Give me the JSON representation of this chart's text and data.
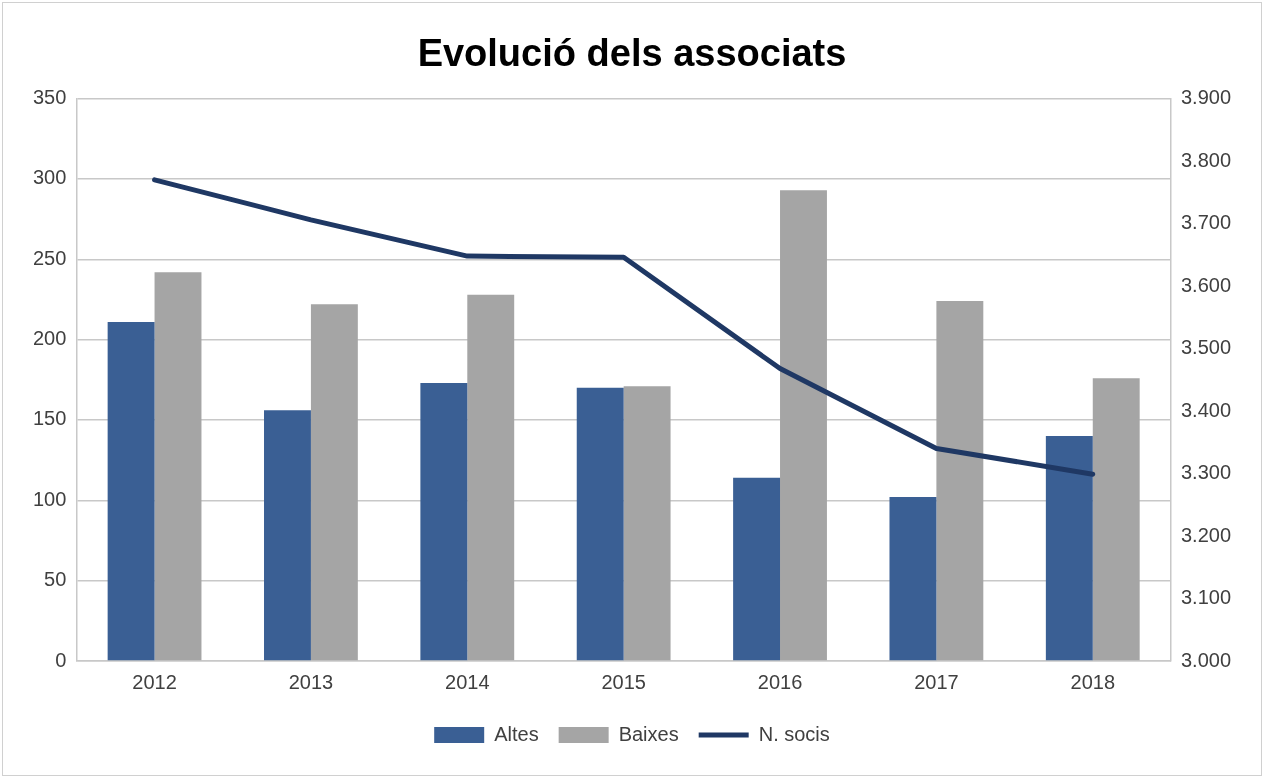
{
  "chart_data": {
    "type": "bar",
    "title": "Evolució dels associats",
    "categories": [
      "2012",
      "2013",
      "2014",
      "2015",
      "2016",
      "2017",
      "2018"
    ],
    "series": [
      {
        "name": "Altes",
        "color": "#3a5f94",
        "values": [
          211,
          156,
          173,
          170,
          114,
          102,
          140
        ]
      },
      {
        "name": "Baixes",
        "color": "#a5a5a5",
        "values": [
          242,
          222,
          228,
          171,
          293,
          224,
          176
        ]
      },
      {
        "name": "N. socis",
        "type": "line",
        "axis": "y2",
        "color": "#1f3864",
        "values": [
          3770,
          3706,
          3648,
          3646,
          3468,
          3340,
          3299
        ]
      }
    ],
    "ylim": [
      0,
      350
    ],
    "yticks": [
      0,
      50,
      100,
      150,
      200,
      250,
      300,
      350
    ],
    "y2lim": [
      3000,
      3900
    ],
    "y2ticks": [
      {
        "value": 3000,
        "label": "3.000"
      },
      {
        "value": 3100,
        "label": "3.100"
      },
      {
        "value": 3200,
        "label": "3.200"
      },
      {
        "value": 3300,
        "label": "3.300"
      },
      {
        "value": 3400,
        "label": "3.400"
      },
      {
        "value": 3500,
        "label": "3.500"
      },
      {
        "value": 3600,
        "label": "3.600"
      },
      {
        "value": 3700,
        "label": "3.700"
      },
      {
        "value": 3800,
        "label": "3.800"
      },
      {
        "value": 3900,
        "label": "3.900"
      }
    ],
    "grid": "y",
    "legend": "bottom",
    "marker": "none",
    "line_style": "solid"
  }
}
